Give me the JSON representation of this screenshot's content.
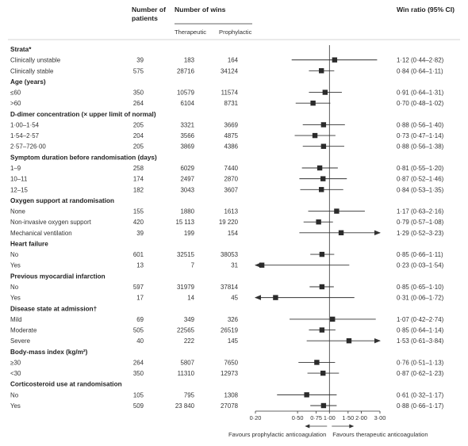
{
  "chart_data": {
    "type": "forest",
    "headers": {
      "patients": [
        "Number of",
        "patients"
      ],
      "wins": "Number of wins",
      "therapeutic": "Therapeutic",
      "prophylactic": "Prophylactic",
      "ratio": "Win ratio (95% CI)"
    },
    "rows": [
      {
        "group": "Strata*"
      },
      {
        "label": "Clinically unstable",
        "n": "39",
        "ther": "183",
        "proph": "164",
        "est": 1.12,
        "lo": 0.44,
        "hi": 2.82,
        "text": "1·12 (0·44–2·82)"
      },
      {
        "label": "Clinically stable",
        "n": "575",
        "ther": "28716",
        "proph": "34124",
        "est": 0.84,
        "lo": 0.64,
        "hi": 1.11,
        "text": "0·84 (0·64–1·11)"
      },
      {
        "group": "Age (years)"
      },
      {
        "label": "≤60",
        "n": "350",
        "ther": "10579",
        "proph": "11574",
        "est": 0.91,
        "lo": 0.64,
        "hi": 1.31,
        "text": "0·91 (0·64–1·31)"
      },
      {
        "label": ">60",
        "n": "264",
        "ther": "6104",
        "proph": "8731",
        "est": 0.7,
        "lo": 0.48,
        "hi": 1.02,
        "text": "0·70 (0·48–1·02)"
      },
      {
        "group": "D-dimer concentration (× upper limit of normal)"
      },
      {
        "label": "1·00–1·54",
        "n": "205",
        "ther": "3321",
        "proph": "3669",
        "est": 0.88,
        "lo": 0.56,
        "hi": 1.4,
        "text": "0·88 (0·56–1·40)"
      },
      {
        "label": "1·54–2·57",
        "n": "204",
        "ther": "3566",
        "proph": "4875",
        "est": 0.73,
        "lo": 0.47,
        "hi": 1.14,
        "text": "0·73 (0·47–1·14)"
      },
      {
        "label": "2·57–726·00",
        "n": "205",
        "ther": "3869",
        "proph": "4386",
        "est": 0.88,
        "lo": 0.56,
        "hi": 1.38,
        "text": "0·88 (0·56–1·38)"
      },
      {
        "group": "Symptom duration before randomisation (days)"
      },
      {
        "label": "1–9",
        "n": "258",
        "ther": "6029",
        "proph": "7440",
        "est": 0.81,
        "lo": 0.55,
        "hi": 1.2,
        "text": "0·81 (0·55–1·20)"
      },
      {
        "label": "10–11",
        "n": "174",
        "ther": "2497",
        "proph": "2870",
        "est": 0.87,
        "lo": 0.52,
        "hi": 1.46,
        "text": "0·87 (0·52–1·46)"
      },
      {
        "label": "12–15",
        "n": "182",
        "ther": "3043",
        "proph": "3607",
        "est": 0.84,
        "lo": 0.53,
        "hi": 1.35,
        "text": "0·84 (0·53–1·35)"
      },
      {
        "group": "Oxygen support at randomisation"
      },
      {
        "label": "None",
        "n": "155",
        "ther": "1880",
        "proph": "1613",
        "est": 1.17,
        "lo": 0.63,
        "hi": 2.16,
        "text": "1·17 (0·63–2·16)"
      },
      {
        "label": "Non-invasive oxygen support",
        "n": "420",
        "ther": "15 113",
        "proph": "19 220",
        "est": 0.79,
        "lo": 0.57,
        "hi": 1.08,
        "text": "0·79 (0·57–1·08)"
      },
      {
        "label": "Mechanical ventilation",
        "n": "39",
        "ther": "199",
        "proph": "154",
        "est": 1.29,
        "lo": 0.52,
        "hi": 3.23,
        "text": "1·29 (0·52–3·23)"
      },
      {
        "group": "Heart failure"
      },
      {
        "label": "No",
        "n": "601",
        "ther": "32515",
        "proph": "38053",
        "est": 0.85,
        "lo": 0.66,
        "hi": 1.11,
        "text": "0·85 (0·66–1·11)"
      },
      {
        "label": "Yes",
        "n": "13",
        "ther": "7",
        "proph": "31",
        "est": 0.23,
        "lo": 0.03,
        "hi": 1.54,
        "text": "0·23 (0·03–1·54)",
        "arrow": true
      },
      {
        "group": "Previous myocardial infarction"
      },
      {
        "label": "No",
        "n": "597",
        "ther": "31979",
        "proph": "37814",
        "est": 0.85,
        "lo": 0.65,
        "hi": 1.1,
        "text": "0·85 (0·65–1·10)"
      },
      {
        "label": "Yes",
        "n": "17",
        "ther": "14",
        "proph": "45",
        "est": 0.31,
        "lo": 0.06,
        "hi": 1.72,
        "text": "0·31 (0·06–1·72)",
        "arrow": true
      },
      {
        "group": "Disease state at admission†"
      },
      {
        "label": "Mild",
        "n": "69",
        "ther": "349",
        "proph": "326",
        "est": 1.07,
        "lo": 0.42,
        "hi": 2.74,
        "text": "1·07 (0·42–2·74)"
      },
      {
        "label": "Moderate",
        "n": "505",
        "ther": "22565",
        "proph": "26519",
        "est": 0.85,
        "lo": 0.64,
        "hi": 1.14,
        "text": "0·85 (0·64–1·14)"
      },
      {
        "label": "Severe",
        "n": "40",
        "ther": "222",
        "proph": "145",
        "est": 1.53,
        "lo": 0.61,
        "hi": 3.84,
        "text": "1·53 (0·61–3·84)"
      },
      {
        "group": "Body-mass index (kg/m²)"
      },
      {
        "label": "≥30",
        "n": "264",
        "ther": "5807",
        "proph": "7650",
        "est": 0.76,
        "lo": 0.51,
        "hi": 1.13,
        "text": "0·76 (0·51–1·13)"
      },
      {
        "label": "<30",
        "n": "350",
        "ther": "11310",
        "proph": "12973",
        "est": 0.87,
        "lo": 0.62,
        "hi": 1.23,
        "text": "0·87 (0·62–1·23)"
      },
      {
        "group": "Corticosteroid use at randomisation"
      },
      {
        "label": "No",
        "n": "105",
        "ther": "795",
        "proph": "1308",
        "est": 0.61,
        "lo": 0.32,
        "hi": 1.17,
        "text": "0·61 (0·32–1·17)"
      },
      {
        "label": "Yes",
        "n": "509",
        "ther": "23 840",
        "proph": "27078",
        "est": 0.88,
        "lo": 0.66,
        "hi": 1.17,
        "text": "0·88 (0·66–1·17)"
      }
    ],
    "x_axis": {
      "scale": "log",
      "reference": 1,
      "xlim": [
        0.2,
        3
      ],
      "ticks": [
        0.2,
        0.5,
        0.75,
        1,
        1.5,
        2,
        3
      ],
      "tick_labels": [
        "0·20",
        "0·50",
        "0·75",
        "1·00",
        "1·50",
        "2·00",
        "3·00"
      ]
    },
    "favours_left": "Favours prophylactic anticoagulation",
    "favours_right": "Favours therapeutic anticoagulation",
    "colors": {
      "marker": "#2b2b2b",
      "line": "#333333",
      "rule": "#c8c8c8"
    }
  }
}
